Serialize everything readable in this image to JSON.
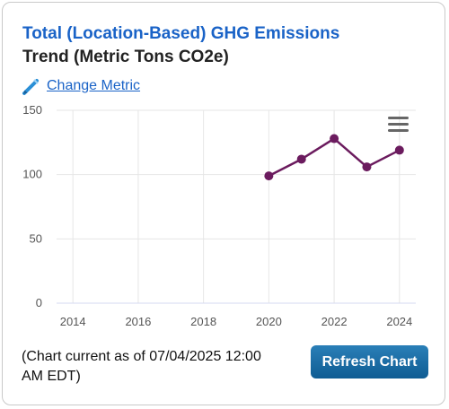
{
  "header": {
    "title": "Total (Location-Based) GHG Emissions",
    "subtitle": "Trend (Metric Tons CO2e)",
    "change_metric_label": "Change Metric",
    "change_metric_icon": "pencil-icon"
  },
  "chart_menu_icon": "hamburger-menu-icon",
  "chart_data": {
    "type": "line",
    "title": "Total (Location-Based) GHG Emissions Trend (Metric Tons CO2e)",
    "xlabel": "",
    "ylabel": "",
    "x_ticks": [
      "2014",
      "2016",
      "2018",
      "2020",
      "2022",
      "2024"
    ],
    "y_ticks": [
      "0",
      "50",
      "100",
      "150"
    ],
    "xlim": [
      2013.5,
      2024.5
    ],
    "ylim": [
      0,
      150
    ],
    "grid": true,
    "legend": "none",
    "series": [
      {
        "color": "#6b1b5e",
        "x": [
          2020,
          2021,
          2022,
          2023,
          2024
        ],
        "y": [
          99,
          112,
          128,
          106,
          119
        ]
      }
    ]
  },
  "footer": {
    "note": "(Chart current as of 07/04/2025 12:00 AM EDT)",
    "refresh_label": "Refresh Chart"
  }
}
